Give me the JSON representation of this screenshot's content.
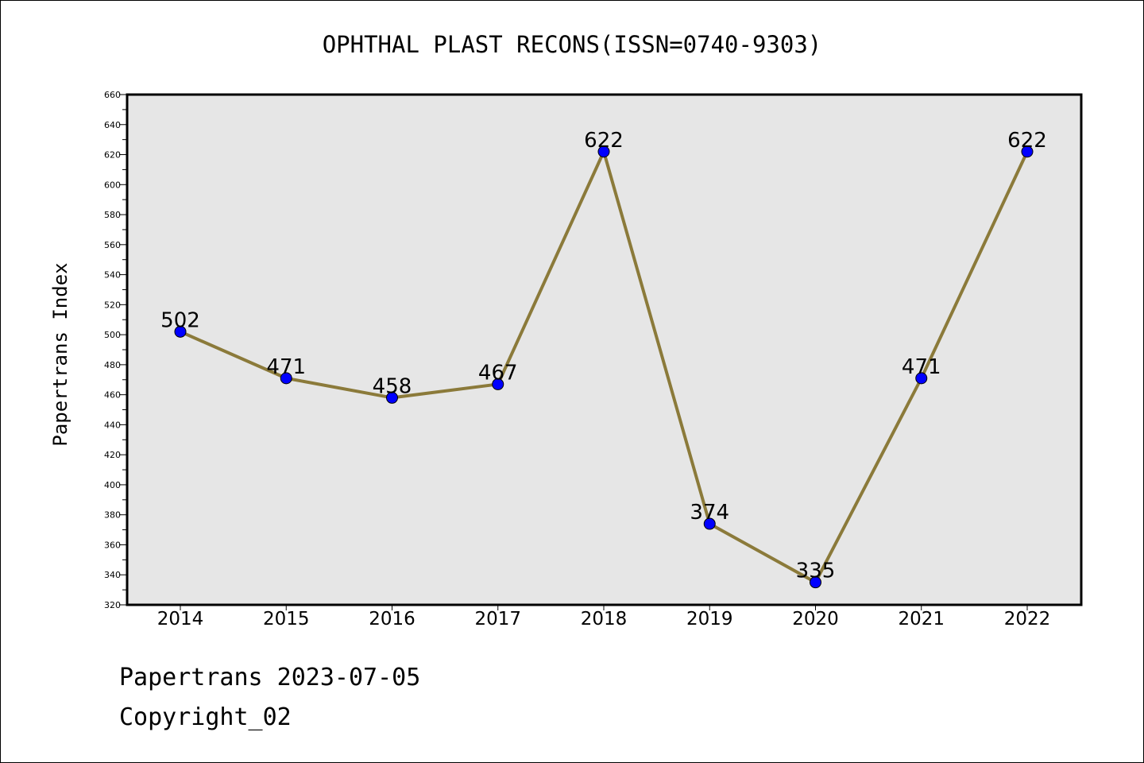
{
  "chart_data": {
    "type": "line",
    "title": "OPHTHAL PLAST RECONS(ISSN=0740-9303)",
    "ylabel": "Papertrans Index",
    "xlabel": "",
    "categories": [
      "2014",
      "2015",
      "2016",
      "2017",
      "2018",
      "2019",
      "2020",
      "2021",
      "2022"
    ],
    "series": [
      {
        "values": [
          502,
          471,
          458,
          467,
          622,
          374,
          335,
          471,
          622
        ]
      }
    ],
    "data_labels": [
      "502",
      "471",
      "458",
      "467",
      "622",
      "374",
      "335",
      "471",
      "622"
    ],
    "ylim": [
      320,
      660
    ],
    "yticks": [
      "320",
      "340",
      "360",
      "380",
      "400",
      "420",
      "440",
      "460",
      "480",
      "500",
      "520",
      "540",
      "560",
      "580",
      "600",
      "620",
      "640",
      "660"
    ],
    "grid": false,
    "legend": "none",
    "colors": {
      "plot_background": "#e6e6e6",
      "line": "#8b7a3a",
      "marker": "#0000ff"
    }
  },
  "footer": {
    "line1": "Papertrans 2023-07-05",
    "line2": "Copyright_02"
  }
}
